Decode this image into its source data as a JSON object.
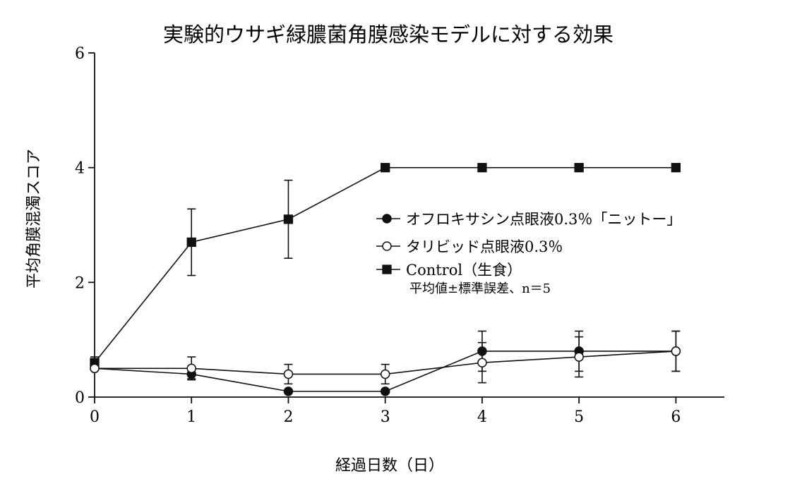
{
  "chart_data": {
    "type": "line",
    "title": "実験的ウサギ緑膿菌角膜感染モデルに対する効果",
    "xlabel": "経過日数（日）",
    "ylabel": "平均角膜混濁スコア",
    "x": [
      0,
      1,
      2,
      3,
      4,
      5,
      6
    ],
    "xlim": [
      0,
      6.5
    ],
    "ylim": [
      0,
      6
    ],
    "xticks": [
      "0",
      "1",
      "2",
      "3",
      "4",
      "5",
      "6"
    ],
    "yticks": [
      "0",
      "2",
      "4",
      "6"
    ],
    "grid": false,
    "legend_position": "center-right",
    "legend_note": "平均値±標準誤差、n＝5",
    "series": [
      {
        "name": "オフロキサシン点眼液0.3％「ニットー」",
        "marker": "filled-circle",
        "color": "#111111",
        "values": [
          0.5,
          0.4,
          0.1,
          0.1,
          0.8,
          0.8,
          0.8
        ],
        "errors": [
          0,
          0.08,
          0,
          0,
          0.35,
          0.35,
          0.35
        ]
      },
      {
        "name": "タリビッド点眼液0.3％",
        "marker": "open-circle",
        "color": "#111111",
        "values": [
          0.5,
          0.5,
          0.4,
          0.4,
          0.6,
          0.7,
          0.8
        ],
        "errors": [
          0,
          0.2,
          0.17,
          0.17,
          0.35,
          0.35,
          0.35
        ]
      },
      {
        "name": "Control（生食）",
        "marker": "filled-square",
        "color": "#111111",
        "values": [
          0.6,
          2.7,
          3.1,
          4.0,
          4.0,
          4.0,
          4.0
        ],
        "errors": [
          0.1,
          0.58,
          0.68,
          0,
          0,
          0,
          0
        ]
      }
    ]
  }
}
